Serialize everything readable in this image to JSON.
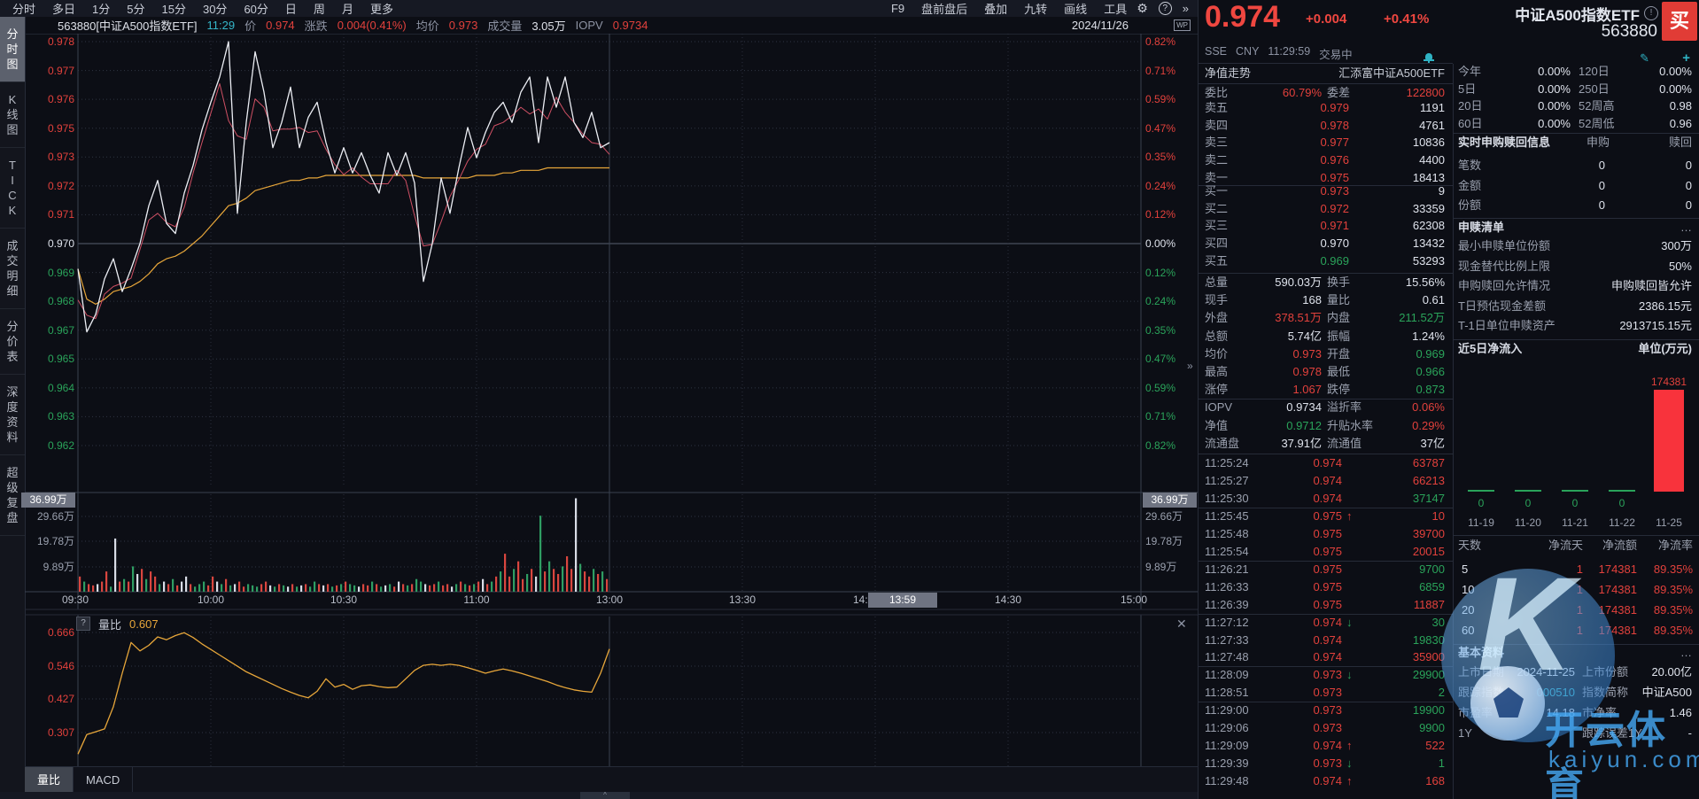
{
  "window": {
    "date": "2024/11/26",
    "wp_badge": "WP"
  },
  "top_menu": {
    "items": [
      "分时",
      "多日",
      "1分",
      "5分",
      "15分",
      "30分",
      "60分",
      "日",
      "周",
      "月",
      "更多"
    ],
    "right_items": [
      "F9",
      "盘前盘后",
      "叠加",
      "九转",
      "画线",
      "工具"
    ]
  },
  "chart_header": {
    "code": "563880[中证A500指数ETF]",
    "time": "11:29",
    "labels": {
      "price": "价",
      "change": "涨跌",
      "avg": "均价",
      "volume": "成交量",
      "iopv": "IOPV"
    },
    "values": {
      "price": "0.974",
      "change": "0.004(0.41%)",
      "avg": "0.973",
      "volume": "3.05万",
      "iopv": "0.9734"
    }
  },
  "sidebar": {
    "items": [
      {
        "label": "分时图",
        "active": true
      },
      {
        "label": "K线图",
        "active": false
      },
      {
        "label": "TICK",
        "active": false
      },
      {
        "label": "成交明细",
        "active": false
      },
      {
        "label": "分价表",
        "active": false
      },
      {
        "label": "深度资料",
        "active": false
      },
      {
        "label": "超级复盘",
        "active": false
      }
    ]
  },
  "axes": {
    "price_ticks": [
      "0.978",
      "0.977",
      "0.976",
      "0.975",
      "0.973",
      "0.972",
      "0.971",
      "0.970",
      "0.969",
      "0.968",
      "0.967",
      "0.965",
      "0.964",
      "0.963",
      "0.962"
    ],
    "pct_ticks": [
      "0.82%",
      "0.71%",
      "0.59%",
      "0.47%",
      "0.35%",
      "0.24%",
      "0.12%",
      "0.00%",
      "0.12%",
      "0.24%",
      "0.35%",
      "0.47%",
      "0.59%",
      "0.71%",
      "0.82%"
    ],
    "volume_max_label": "36.99万",
    "volume_ticks": [
      "29.66万",
      "19.78万",
      "9.89万"
    ],
    "time_labels": [
      "09:30",
      "10:00",
      "10:30",
      "11:00",
      "13:00",
      "13:30",
      "14:00",
      "14:30",
      "15:00"
    ],
    "crosshair_time": "13:59",
    "liangbi_ticks": [
      "0.666",
      "0.546",
      "0.427",
      "0.307"
    ]
  },
  "indicator": {
    "help": "?",
    "name": "量比",
    "value": "0.607",
    "tabs": [
      {
        "label": "量比",
        "active": true
      },
      {
        "label": "MACD",
        "active": false
      }
    ]
  },
  "chart_data": [
    {
      "type": "line",
      "title": "分时价格",
      "prev_close": 0.97,
      "ylim": [
        0.962,
        0.978
      ],
      "x_minutes_per_point": 2,
      "series": [
        {
          "name": "价格",
          "values": [
            0.969,
            0.9665,
            0.9672,
            0.9686,
            0.9694,
            0.9681,
            0.969,
            0.97,
            0.9715,
            0.9725,
            0.9708,
            0.9704,
            0.972,
            0.9731,
            0.9745,
            0.9756,
            0.9766,
            0.978,
            0.9712,
            0.9748,
            0.9776,
            0.976,
            0.9738,
            0.9748,
            0.9762,
            0.9738,
            0.975,
            0.9756,
            0.974,
            0.9728,
            0.9738,
            0.9728,
            0.9736,
            0.9727,
            0.972,
            0.9736,
            0.9727,
            0.9736,
            0.9724,
            0.9685,
            0.97,
            0.9726,
            0.9712,
            0.973,
            0.9746,
            0.9734,
            0.9744,
            0.9752,
            0.9756,
            0.9748,
            0.976,
            0.9766,
            0.974,
            0.9766,
            0.9754,
            0.9766,
            0.9748,
            0.9742,
            0.9752,
            0.9738,
            0.974
          ]
        },
        {
          "name": "均价",
          "values": [
            0.969,
            0.9678,
            0.9676,
            0.9678,
            0.9681,
            0.9682,
            0.9683,
            0.9685,
            0.9688,
            0.9692,
            0.9694,
            0.9695,
            0.9697,
            0.97,
            0.9703,
            0.9707,
            0.9711,
            0.9715,
            0.9716,
            0.9718,
            0.9721,
            0.9722,
            0.9723,
            0.9724,
            0.9725,
            0.9725,
            0.9726,
            0.9726,
            0.9727,
            0.9727,
            0.9727,
            0.9727,
            0.9727,
            0.9727,
            0.9727,
            0.9727,
            0.9727,
            0.9727,
            0.9727,
            0.9726,
            0.9726,
            0.9726,
            0.9726,
            0.9726,
            0.9726,
            0.9727,
            0.9727,
            0.9727,
            0.9728,
            0.9728,
            0.9729,
            0.9729,
            0.9729,
            0.973,
            0.973,
            0.973,
            0.973,
            0.973,
            0.973,
            0.973,
            0.973
          ]
        }
      ]
    },
    {
      "type": "bar",
      "title": "分时成交量(万份)",
      "ylim": [
        0,
        36.99
      ],
      "x_minutes_per_point": 1,
      "values": [
        6,
        4,
        3,
        2.5,
        3,
        4,
        8,
        2,
        21,
        4,
        5,
        4,
        10,
        7,
        9,
        5,
        8,
        6,
        3,
        4,
        3,
        5,
        2.5,
        4,
        6,
        3,
        2,
        3,
        4,
        2.5,
        6,
        4,
        3,
        5,
        2.5,
        3,
        4,
        2,
        3,
        2.5,
        2,
        3,
        4,
        2.5,
        2,
        3,
        2.5,
        2,
        3,
        2,
        2.5,
        3,
        2,
        4,
        3,
        2.5,
        3,
        2,
        2.5,
        3,
        4,
        3,
        2.5,
        2,
        3,
        2.5,
        4,
        3,
        2,
        2.5,
        3,
        2,
        4,
        3,
        2.5,
        3,
        5,
        4,
        3,
        2.5,
        3,
        4,
        2.5,
        3,
        2,
        3,
        4,
        3,
        2.5,
        3,
        4,
        5,
        3,
        4,
        6,
        8,
        15,
        6,
        9,
        12,
        5,
        7,
        9,
        6,
        30,
        8,
        12,
        9,
        7,
        10,
        14,
        9,
        36.9,
        11,
        8,
        6,
        9,
        7,
        8,
        5
      ],
      "colors": [
        "uduufuudfu",
        "dudfuduudf",
        "uduffudddu",
        "ufdudfuudd",
        "duufdudfud",
        "fuddufudud",
        "uddfuududf",
        "dufududdfu",
        "uduufdudud",
        "ufududuudu",
        "udufduduud",
        "uufduududu"
      ]
    },
    {
      "type": "line",
      "title": "量比",
      "current": 0.607,
      "ticks": [
        0.666,
        0.546,
        0.427,
        0.307
      ],
      "x_minutes_per_point": 2,
      "values": [
        0.23,
        0.3,
        0.31,
        0.32,
        0.4,
        0.52,
        0.63,
        0.6,
        0.62,
        0.65,
        0.64,
        0.655,
        0.665,
        0.648,
        0.625,
        0.605,
        0.585,
        0.565,
        0.545,
        0.525,
        0.51,
        0.495,
        0.48,
        0.465,
        0.452,
        0.44,
        0.432,
        0.455,
        0.5,
        0.47,
        0.48,
        0.462,
        0.475,
        0.478,
        0.472,
        0.468,
        0.47,
        0.5,
        0.53,
        0.548,
        0.552,
        0.548,
        0.552,
        0.548,
        0.54,
        0.53,
        0.52,
        0.528,
        0.535,
        0.528,
        0.52,
        0.51,
        0.5,
        0.49,
        0.478,
        0.468,
        0.46,
        0.455,
        0.452,
        0.52,
        0.607
      ]
    },
    {
      "type": "bar",
      "title": "近5日净流入(万元)",
      "categories": [
        "11-19",
        "11-20",
        "11-21",
        "11-22",
        "11-25"
      ],
      "values": [
        0,
        0,
        0,
        0,
        174381
      ],
      "bar_label": "174381"
    }
  ],
  "quote_panel": {
    "price": "0.974",
    "change": "+0.004",
    "change_pct": "+0.41%",
    "name": "中证A500指数ETF",
    "code": "563880",
    "buy_label": "买",
    "info_icon": "!",
    "exchange": "SSE",
    "currency": "CNY",
    "time": "11:29:59",
    "status": "交易中",
    "nav_row": {
      "label": "净值走势",
      "value": "汇添富中证A500ETF"
    },
    "weibi": {
      "label": "委比",
      "value": "60.79%",
      "label2": "委差",
      "value2": "122800"
    },
    "asks": [
      {
        "label": "卖五",
        "price": "0.979",
        "pc": "r",
        "vol": "1191"
      },
      {
        "label": "卖四",
        "price": "0.978",
        "pc": "r",
        "vol": "4761"
      },
      {
        "label": "卖三",
        "price": "0.977",
        "pc": "r",
        "vol": "10836"
      },
      {
        "label": "卖二",
        "price": "0.976",
        "pc": "r",
        "vol": "4400"
      },
      {
        "label": "卖一",
        "price": "0.975",
        "pc": "r",
        "vol": "18413"
      }
    ],
    "bids": [
      {
        "label": "买一",
        "price": "0.973",
        "pc": "r",
        "vol": "9"
      },
      {
        "label": "买二",
        "price": "0.972",
        "pc": "r",
        "vol": "33359"
      },
      {
        "label": "买三",
        "price": "0.971",
        "pc": "r",
        "vol": "62308"
      },
      {
        "label": "买四",
        "price": "0.970",
        "pc": "w",
        "vol": "13432"
      },
      {
        "label": "买五",
        "price": "0.969",
        "pc": "g",
        "vol": "53293"
      }
    ],
    "stats": [
      {
        "l1": "总量",
        "v1": "590.03万",
        "c1": "w",
        "l2": "换手",
        "v2": "15.56%",
        "c2": "w"
      },
      {
        "l1": "现手",
        "v1": "168",
        "c1": "w",
        "l2": "量比",
        "v2": "0.61",
        "c2": "w"
      },
      {
        "l1": "外盘",
        "v1": "378.51万",
        "c1": "r",
        "l2": "内盘",
        "v2": "211.52万",
        "c2": "g"
      },
      {
        "l1": "总额",
        "v1": "5.74亿",
        "c1": "w",
        "l2": "振幅",
        "v2": "1.24%",
        "c2": "w"
      },
      {
        "l1": "均价",
        "v1": "0.973",
        "c1": "r",
        "l2": "开盘",
        "v2": "0.969",
        "c2": "g"
      },
      {
        "l1": "最高",
        "v1": "0.978",
        "c1": "r",
        "l2": "最低",
        "v2": "0.966",
        "c2": "g"
      },
      {
        "l1": "涨停",
        "v1": "1.067",
        "c1": "r",
        "l2": "跌停",
        "v2": "0.873",
        "c2": "g"
      },
      {
        "l1": "IOPV",
        "v1": "0.9734",
        "c1": "w",
        "l2": "溢折率",
        "v2": "0.06%",
        "c2": "r"
      },
      {
        "l1": "净值",
        "v1": "0.9712",
        "c1": "g",
        "l2": "升贴水率",
        "v2": "0.29%",
        "c2": "r"
      },
      {
        "l1": "流通盘",
        "v1": "37.91亿",
        "c1": "w",
        "l2": "流通值",
        "v2": "37亿",
        "c2": "w"
      }
    ],
    "ticks": [
      {
        "time": "11:25:24",
        "price": "0.974",
        "arrow": "",
        "vol": "63787",
        "vc": "r"
      },
      {
        "time": "11:25:27",
        "price": "0.974",
        "arrow": "",
        "vol": "66213",
        "vc": "r"
      },
      {
        "time": "11:25:30",
        "price": "0.974",
        "arrow": "",
        "vol": "37147",
        "vc": "g"
      },
      {
        "time": "11:25:45",
        "price": "0.975",
        "arrow": "up",
        "vol": "10",
        "vc": "r"
      },
      {
        "time": "11:25:48",
        "price": "0.975",
        "arrow": "",
        "vol": "39700",
        "vc": "r"
      },
      {
        "time": "11:25:54",
        "price": "0.975",
        "arrow": "",
        "vol": "20015",
        "vc": "r"
      },
      {
        "time": "11:26:21",
        "price": "0.975",
        "arrow": "",
        "vol": "9700",
        "vc": "g"
      },
      {
        "time": "11:26:33",
        "price": "0.975",
        "arrow": "",
        "vol": "6859",
        "vc": "g"
      },
      {
        "time": "11:26:39",
        "price": "0.975",
        "arrow": "",
        "vol": "11887",
        "vc": "r"
      },
      {
        "time": "11:27:12",
        "price": "0.974",
        "arrow": "down",
        "vol": "30",
        "vc": "g"
      },
      {
        "time": "11:27:33",
        "price": "0.974",
        "arrow": "",
        "vol": "19830",
        "vc": "g"
      },
      {
        "time": "11:27:48",
        "price": "0.974",
        "arrow": "",
        "vol": "35900",
        "vc": "r"
      },
      {
        "time": "11:28:09",
        "price": "0.973",
        "arrow": "down",
        "vol": "29900",
        "vc": "g"
      },
      {
        "time": "11:28:51",
        "price": "0.973",
        "arrow": "",
        "vol": "2",
        "vc": "g"
      },
      {
        "time": "11:29:00",
        "price": "0.973",
        "arrow": "",
        "vol": "19900",
        "vc": "g"
      },
      {
        "time": "11:29:06",
        "price": "0.973",
        "arrow": "",
        "vol": "9900",
        "vc": "g"
      },
      {
        "time": "11:29:09",
        "price": "0.974",
        "arrow": "up",
        "vol": "522",
        "vc": "r"
      },
      {
        "time": "11:29:39",
        "price": "0.973",
        "arrow": "down",
        "vol": "1",
        "vc": "g"
      },
      {
        "time": "11:29:48",
        "price": "0.974",
        "arrow": "up",
        "vol": "168",
        "vc": "r"
      }
    ],
    "tick_separators_before": [
      3,
      6,
      9,
      12,
      14
    ]
  },
  "detail_panel": {
    "perf": [
      {
        "l1": "今年",
        "v1": "0.00%",
        "l2": "120日",
        "v2": "0.00%"
      },
      {
        "l1": "5日",
        "v1": "0.00%",
        "l2": "250日",
        "v2": "0.00%"
      },
      {
        "l1": "20日",
        "v1": "0.00%",
        "l2": "52周高",
        "v2": "0.98"
      },
      {
        "l1": "60日",
        "v1": "0.00%",
        "l2": "52周低",
        "v2": "0.96"
      }
    ],
    "realtime": {
      "title": "实时申购赎回信息",
      "col1": "申购",
      "col2": "赎回",
      "rows": [
        {
          "l": "笔数",
          "v1": "0",
          "v2": "0"
        },
        {
          "l": "金额",
          "v1": "0",
          "v2": "0"
        },
        {
          "l": "份额",
          "v1": "0",
          "v2": "0"
        }
      ]
    },
    "list": {
      "title": "申赎清单",
      "more": "…",
      "rows": [
        {
          "l": "最小申赎单位份额",
          "v": "300万"
        },
        {
          "l": "现金替代比例上限",
          "v": "50%"
        },
        {
          "l": "申购赎回允许情况",
          "v": "申购赎回皆允许"
        },
        {
          "l": "T日预估现金差额",
          "v": "2386.15元"
        },
        {
          "l": "T-1日单位申赎资产",
          "v": "2913715.15元"
        }
      ]
    },
    "netflow": {
      "title": "近5日净流入",
      "unit": "单位(万元)"
    },
    "flows": {
      "headers": [
        "天数",
        "净流天",
        "净流额",
        "净流率"
      ],
      "rows": [
        [
          "5",
          "1",
          "174381",
          "89.35%"
        ],
        [
          "10",
          "1",
          "174381",
          "89.35%"
        ],
        [
          "20",
          "1",
          "174381",
          "89.35%"
        ],
        [
          "60",
          "1",
          "174381",
          "89.35%"
        ]
      ]
    },
    "basic": {
      "title": "基本资料",
      "more": "…",
      "rows": [
        {
          "l1": "上市日期",
          "v1": "2024-11-25",
          "c1": "w",
          "l2": "上市份额",
          "v2": "20.00亿",
          "c2": "w"
        },
        {
          "l1": "跟踪指数",
          "v1": "000510",
          "c1": "t",
          "l2": "指数简称",
          "v2": "中证A500",
          "c2": "w"
        },
        {
          "l1": "市盈率",
          "v1": "14.18",
          "c1": "w",
          "l2": "市净率",
          "v2": "1.46",
          "c2": "w"
        },
        {
          "l1": "1Y",
          "v1": "",
          "c1": "w",
          "l2": "跟踪误差1Y",
          "v2": "-",
          "c2": "w"
        }
      ]
    }
  },
  "watermark": {
    "letter": "K",
    "text": "开云体育",
    "url": "kaiyun.com"
  },
  "colors": {
    "up": "#e2413c",
    "down": "#2aa35a",
    "flat": "#dfe3ec",
    "price_line": "#eceef4",
    "avg_line": "#e7a63a",
    "iopv_line": "#cf5064",
    "teal": "#35b6c9",
    "grid": "#2e3442",
    "zero_line": "#596070",
    "bar_red": "#d9463f",
    "bar_green": "#2f9e63",
    "bar_white": "#d8dce6",
    "netflow_red": "#f8333c"
  }
}
